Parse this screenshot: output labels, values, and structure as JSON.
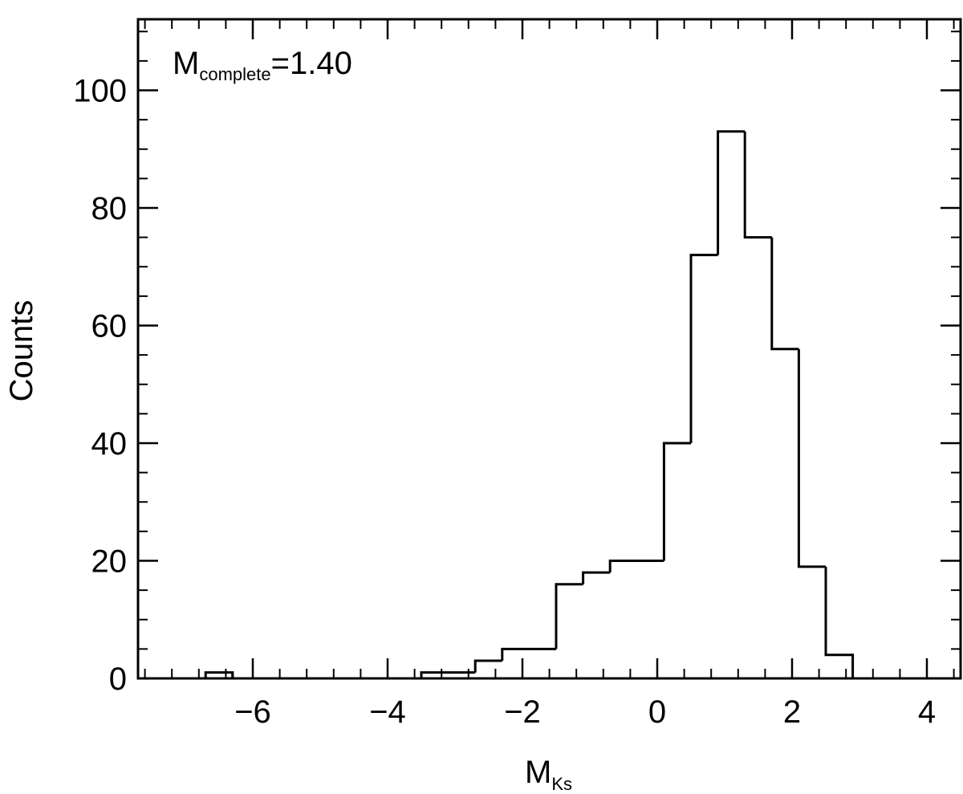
{
  "chart_data": {
    "type": "bar",
    "histogram": true,
    "xlabel": {
      "main": "M",
      "sub": "Ks"
    },
    "ylabel": "Counts",
    "annotation": {
      "main": "M",
      "sub": "complete",
      "rest": "=1.40"
    },
    "xlim": [
      -8.0,
      4.5
    ],
    "ylim": [
      -0.5,
      112
    ],
    "xticks": [
      -6,
      -4,
      -2,
      0,
      2,
      4
    ],
    "xtick_labels": [
      "−6",
      "−4",
      "−2",
      "0",
      "2",
      "4"
    ],
    "yticks": [
      0,
      20,
      40,
      60,
      80,
      100
    ],
    "ytick_labels": [
      "0",
      "20",
      "40",
      "60",
      "80",
      "100"
    ],
    "bins": [
      {
        "x0": -6.7,
        "x1": -6.3,
        "count": 1
      },
      {
        "x0": -6.3,
        "x1": -3.5,
        "count": 0
      },
      {
        "x0": -3.5,
        "x1": -2.7,
        "count": 1
      },
      {
        "x0": -2.7,
        "x1": -2.3,
        "count": 3
      },
      {
        "x0": -2.3,
        "x1": -1.5,
        "count": 5
      },
      {
        "x0": -1.5,
        "x1": -1.1,
        "count": 16
      },
      {
        "x0": -1.1,
        "x1": -0.7,
        "count": 18
      },
      {
        "x0": -0.7,
        "x1": 0.1,
        "count": 20
      },
      {
        "x0": 0.1,
        "x1": 0.5,
        "count": 40
      },
      {
        "x0": 0.5,
        "x1": 0.9,
        "count": 72
      },
      {
        "x0": 0.9,
        "x1": 1.3,
        "count": 93
      },
      {
        "x0": 1.3,
        "x1": 1.7,
        "count": 75
      },
      {
        "x0": 1.7,
        "x1": 2.1,
        "count": 56
      },
      {
        "x0": 2.1,
        "x1": 2.5,
        "count": 19
      },
      {
        "x0": 2.5,
        "x1": 2.9,
        "count": 4
      }
    ],
    "grid": false,
    "color": "#000000"
  }
}
